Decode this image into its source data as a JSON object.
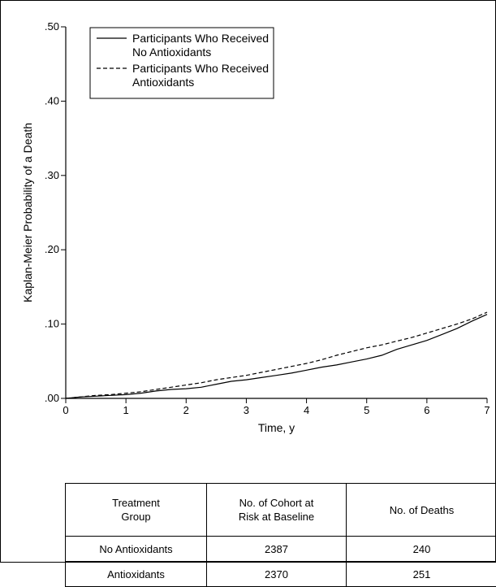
{
  "chart_data": {
    "type": "line",
    "title": "",
    "xlabel": "Time, y",
    "ylabel": "Kaplan-Meier Probability of a Death",
    "xlim": [
      0,
      7
    ],
    "ylim": [
      0,
      0.5
    ],
    "x_ticks": [
      0,
      1,
      2,
      3,
      4,
      5,
      6,
      7
    ],
    "x_tick_labels": [
      "0",
      "1",
      "2",
      "3",
      "4",
      "5",
      "6",
      "7"
    ],
    "y_ticks": [
      0,
      0.1,
      0.2,
      0.3,
      0.4,
      0.5
    ],
    "y_tick_labels": [
      ".00",
      ".10",
      ".20",
      ".30",
      ".40",
      ".50"
    ],
    "grid": false,
    "legend_position": "top-left",
    "series": [
      {
        "name": "Participants Who Received No Antioxidants",
        "legend_lines": [
          "Participants Who Received",
          "No Antioxidants"
        ],
        "style": "solid",
        "x": [
          0,
          0.25,
          0.5,
          0.75,
          1.0,
          1.25,
          1.5,
          1.75,
          2.0,
          2.25,
          2.5,
          2.75,
          3.0,
          3.25,
          3.5,
          3.75,
          4.0,
          4.25,
          4.5,
          4.75,
          5.0,
          5.25,
          5.5,
          5.75,
          6.0,
          6.25,
          6.5,
          6.75,
          7.0
        ],
        "y": [
          0,
          0.002,
          0.003,
          0.004,
          0.005,
          0.007,
          0.01,
          0.012,
          0.013,
          0.015,
          0.019,
          0.023,
          0.025,
          0.028,
          0.031,
          0.034,
          0.038,
          0.042,
          0.045,
          0.049,
          0.053,
          0.058,
          0.066,
          0.072,
          0.078,
          0.086,
          0.094,
          0.104,
          0.113
        ]
      },
      {
        "name": "Participants Who Received Antioxidants",
        "legend_lines": [
          "Participants Who Received",
          "Antioxidants"
        ],
        "style": "dashed",
        "x": [
          0,
          0.25,
          0.5,
          0.75,
          1.0,
          1.25,
          1.5,
          1.75,
          2.0,
          2.25,
          2.5,
          2.75,
          3.0,
          3.25,
          3.5,
          3.75,
          4.0,
          4.25,
          4.5,
          4.75,
          5.0,
          5.25,
          5.5,
          5.75,
          6.0,
          6.25,
          6.5,
          6.75,
          7.0
        ],
        "y": [
          0,
          0.002,
          0.004,
          0.005,
          0.007,
          0.009,
          0.012,
          0.015,
          0.018,
          0.021,
          0.025,
          0.028,
          0.031,
          0.035,
          0.039,
          0.043,
          0.047,
          0.052,
          0.058,
          0.063,
          0.068,
          0.072,
          0.077,
          0.082,
          0.088,
          0.094,
          0.1,
          0.107,
          0.116
        ]
      }
    ]
  },
  "table": {
    "headers": [
      [
        "Treatment",
        "Group"
      ],
      [
        "No. of Cohort at",
        "Risk at Baseline"
      ],
      [
        "No. of Deaths"
      ]
    ],
    "rows": [
      [
        "No Antioxidants",
        "2387",
        "240"
      ],
      [
        "Antioxidants",
        "2370",
        "251"
      ]
    ]
  }
}
